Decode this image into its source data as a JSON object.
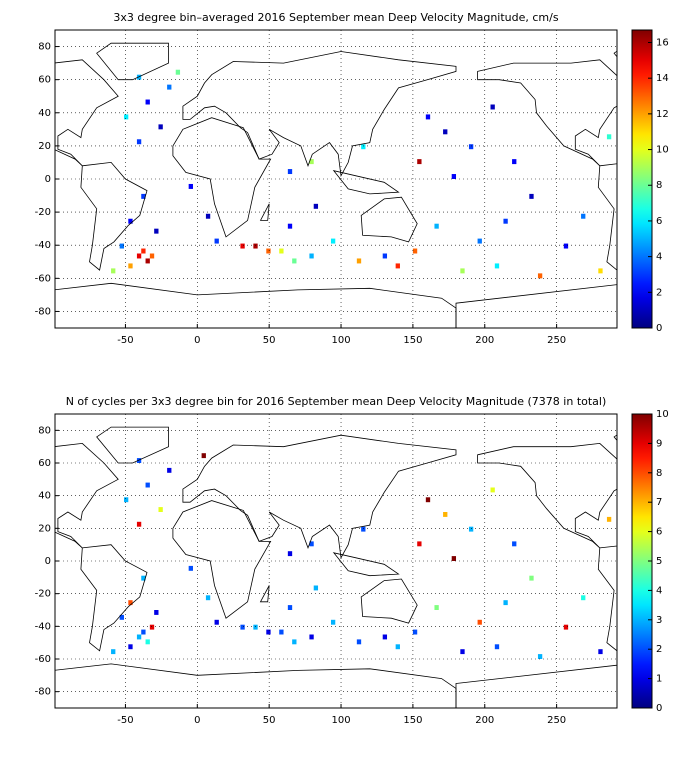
{
  "chart_data": [
    {
      "type": "heatmap",
      "title": "3x3 degree bin–averaged 2016 September mean Deep Velocity Magnitude, cm/s",
      "xlim": [
        -99,
        292
      ],
      "xticks": [
        -50,
        0,
        50,
        100,
        150,
        200,
        250
      ],
      "ylim": [
        -90,
        90
      ],
      "yticks": [
        -80,
        -60,
        -40,
        -20,
        0,
        20,
        40,
        60,
        80
      ],
      "clim": [
        0,
        16.7
      ],
      "cticks": [
        0,
        2,
        4,
        6,
        8,
        10,
        12,
        14,
        16
      ],
      "colormap": "jet",
      "grid": true,
      "cells": [
        [
          -40.5,
          -46.5,
          15
        ],
        [
          -37.5,
          -43.5,
          14
        ],
        [
          -34.5,
          -49.5,
          16
        ],
        [
          -31.5,
          -46.5,
          13
        ],
        [
          -46.5,
          -52.5,
          12
        ],
        [
          -58.5,
          -55.5,
          9
        ],
        [
          -52.5,
          -40.5,
          4
        ],
        [
          -46.5,
          -25.5,
          2
        ],
        [
          -37.5,
          -10.5,
          3
        ],
        [
          -28.5,
          -31.5,
          1
        ],
        [
          -40.5,
          22.5,
          3
        ],
        [
          -49.5,
          37.5,
          6
        ],
        [
          -34.5,
          46.5,
          2
        ],
        [
          -25.5,
          31.5,
          1
        ],
        [
          -19.5,
          55.5,
          4
        ],
        [
          -40.5,
          61.5,
          5
        ],
        [
          -13.5,
          64.5,
          8
        ],
        [
          -4.5,
          -4.5,
          2
        ],
        [
          7.5,
          -22.5,
          1
        ],
        [
          13.5,
          -37.5,
          3
        ],
        [
          31.5,
          -40.5,
          15
        ],
        [
          40.5,
          -40.5,
          16
        ],
        [
          49.5,
          -43.5,
          13
        ],
        [
          58.5,
          -43.5,
          10
        ],
        [
          67.5,
          -49.5,
          8
        ],
        [
          79.5,
          -46.5,
          5
        ],
        [
          64.5,
          -28.5,
          2
        ],
        [
          82.5,
          -16.5,
          1
        ],
        [
          64.5,
          4.5,
          3
        ],
        [
          79.5,
          10.5,
          9
        ],
        [
          94.5,
          -37.5,
          6
        ],
        [
          112.5,
          -49.5,
          12
        ],
        [
          130.5,
          -46.5,
          3
        ],
        [
          139.5,
          -52.5,
          14
        ],
        [
          151.5,
          -43.5,
          13
        ],
        [
          154.5,
          10.5,
          16
        ],
        [
          160.5,
          37.5,
          2
        ],
        [
          172.5,
          28.5,
          1
        ],
        [
          190.5,
          19.5,
          3
        ],
        [
          205.5,
          43.5,
          1
        ],
        [
          220.5,
          10.5,
          2
        ],
        [
          232.5,
          -10.5,
          1
        ],
        [
          214.5,
          -25.5,
          3
        ],
        [
          196.5,
          -37.5,
          4
        ],
        [
          184.5,
          -55.5,
          9
        ],
        [
          208.5,
          -52.5,
          6
        ],
        [
          238.5,
          -58.5,
          13
        ],
        [
          256.5,
          -40.5,
          2
        ],
        [
          268.5,
          -22.5,
          4
        ],
        [
          280.5,
          -55.5,
          11
        ],
        [
          286.5,
          25.5,
          7
        ],
        [
          166.5,
          -28.5,
          5
        ],
        [
          178.5,
          1.5,
          2
        ],
        [
          115.5,
          19.5,
          6
        ]
      ]
    },
    {
      "type": "heatmap",
      "title": "N of cycles per 3x3 degree bin for 2016 September mean Deep Velocity Magnitude (7378 in total)",
      "xlim": [
        -99,
        292
      ],
      "xticks": [
        -50,
        0,
        50,
        100,
        150,
        200,
        250
      ],
      "ylim": [
        -90,
        90
      ],
      "yticks": [
        -80,
        -60,
        -40,
        -20,
        0,
        20,
        40,
        60,
        80
      ],
      "clim": [
        0,
        10
      ],
      "cticks": [
        0,
        1,
        2,
        3,
        4,
        5,
        6,
        7,
        8,
        9,
        10
      ],
      "colormap": "jet",
      "grid": true,
      "cells": [
        [
          -40.5,
          -46.5,
          3
        ],
        [
          -37.5,
          -43.5,
          2
        ],
        [
          -34.5,
          -49.5,
          4
        ],
        [
          -31.5,
          -40.5,
          9
        ],
        [
          -46.5,
          -52.5,
          1
        ],
        [
          -58.5,
          -55.5,
          3
        ],
        [
          -52.5,
          -34.5,
          2
        ],
        [
          -46.5,
          -25.5,
          8
        ],
        [
          -37.5,
          -10.5,
          3
        ],
        [
          -28.5,
          -31.5,
          1
        ],
        [
          -40.5,
          22.5,
          9
        ],
        [
          -49.5,
          37.5,
          3
        ],
        [
          -34.5,
          46.5,
          2
        ],
        [
          -25.5,
          31.5,
          6
        ],
        [
          -19.5,
          55.5,
          1
        ],
        [
          -40.5,
          61.5,
          2
        ],
        [
          4.5,
          64.5,
          10
        ],
        [
          -4.5,
          -4.5,
          2
        ],
        [
          7.5,
          -22.5,
          3
        ],
        [
          13.5,
          -37.5,
          1
        ],
        [
          31.5,
          -40.5,
          2
        ],
        [
          40.5,
          -40.5,
          3
        ],
        [
          49.5,
          -43.5,
          1
        ],
        [
          58.5,
          -43.5,
          2
        ],
        [
          67.5,
          -49.5,
          3
        ],
        [
          79.5,
          -46.5,
          1
        ],
        [
          64.5,
          -28.5,
          2
        ],
        [
          82.5,
          -16.5,
          3
        ],
        [
          64.5,
          4.5,
          1
        ],
        [
          79.5,
          10.5,
          2
        ],
        [
          94.5,
          -37.5,
          3
        ],
        [
          112.5,
          -49.5,
          2
        ],
        [
          130.5,
          -46.5,
          1
        ],
        [
          139.5,
          -52.5,
          3
        ],
        [
          151.5,
          -43.5,
          2
        ],
        [
          154.5,
          10.5,
          9
        ],
        [
          160.5,
          37.5,
          10
        ],
        [
          172.5,
          28.5,
          7
        ],
        [
          190.5,
          19.5,
          3
        ],
        [
          205.5,
          43.5,
          6
        ],
        [
          220.5,
          10.5,
          2
        ],
        [
          232.5,
          -10.5,
          5
        ],
        [
          214.5,
          -25.5,
          3
        ],
        [
          196.5,
          -37.5,
          8
        ],
        [
          184.5,
          -55.5,
          1
        ],
        [
          208.5,
          -52.5,
          2
        ],
        [
          238.5,
          -58.5,
          3
        ],
        [
          256.5,
          -40.5,
          9
        ],
        [
          268.5,
          -22.5,
          4
        ],
        [
          280.5,
          -55.5,
          1
        ],
        [
          286.5,
          25.5,
          7
        ],
        [
          166.5,
          -28.5,
          5
        ],
        [
          178.5,
          1.5,
          10
        ],
        [
          115.5,
          19.5,
          2
        ]
      ]
    }
  ]
}
